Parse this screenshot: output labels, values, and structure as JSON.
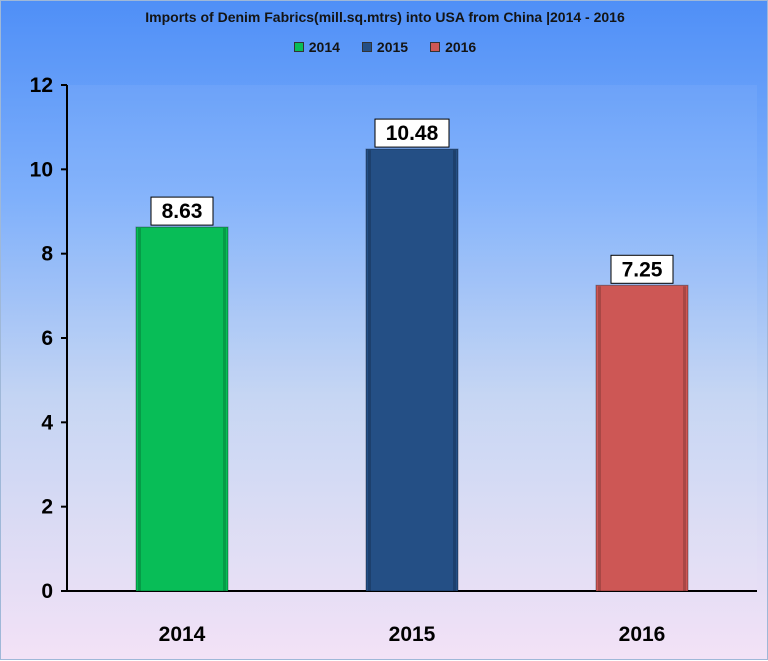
{
  "chart_data": {
    "type": "bar",
    "title": "Imports of Denim Fabrics(mill.sq.mtrs) into USA from China |2014 - 2016",
    "categories": [
      "2014",
      "2015",
      "2016"
    ],
    "values": [
      8.63,
      10.48,
      7.25
    ],
    "value_labels": [
      "8.63",
      "10.48",
      "7.25"
    ],
    "legend": [
      "2014",
      "2015",
      "2016"
    ],
    "legend_position": "top",
    "colors": [
      "#08bd57",
      "#244f85",
      "#cd5755"
    ],
    "xlabel": "",
    "ylabel": "",
    "ylim": [
      0,
      12
    ],
    "yticks": [
      0,
      2,
      4,
      6,
      8,
      10,
      12
    ],
    "ytick_labels": [
      "0",
      "2",
      "4",
      "6",
      "8",
      "10",
      "12"
    ],
    "grid": false
  }
}
